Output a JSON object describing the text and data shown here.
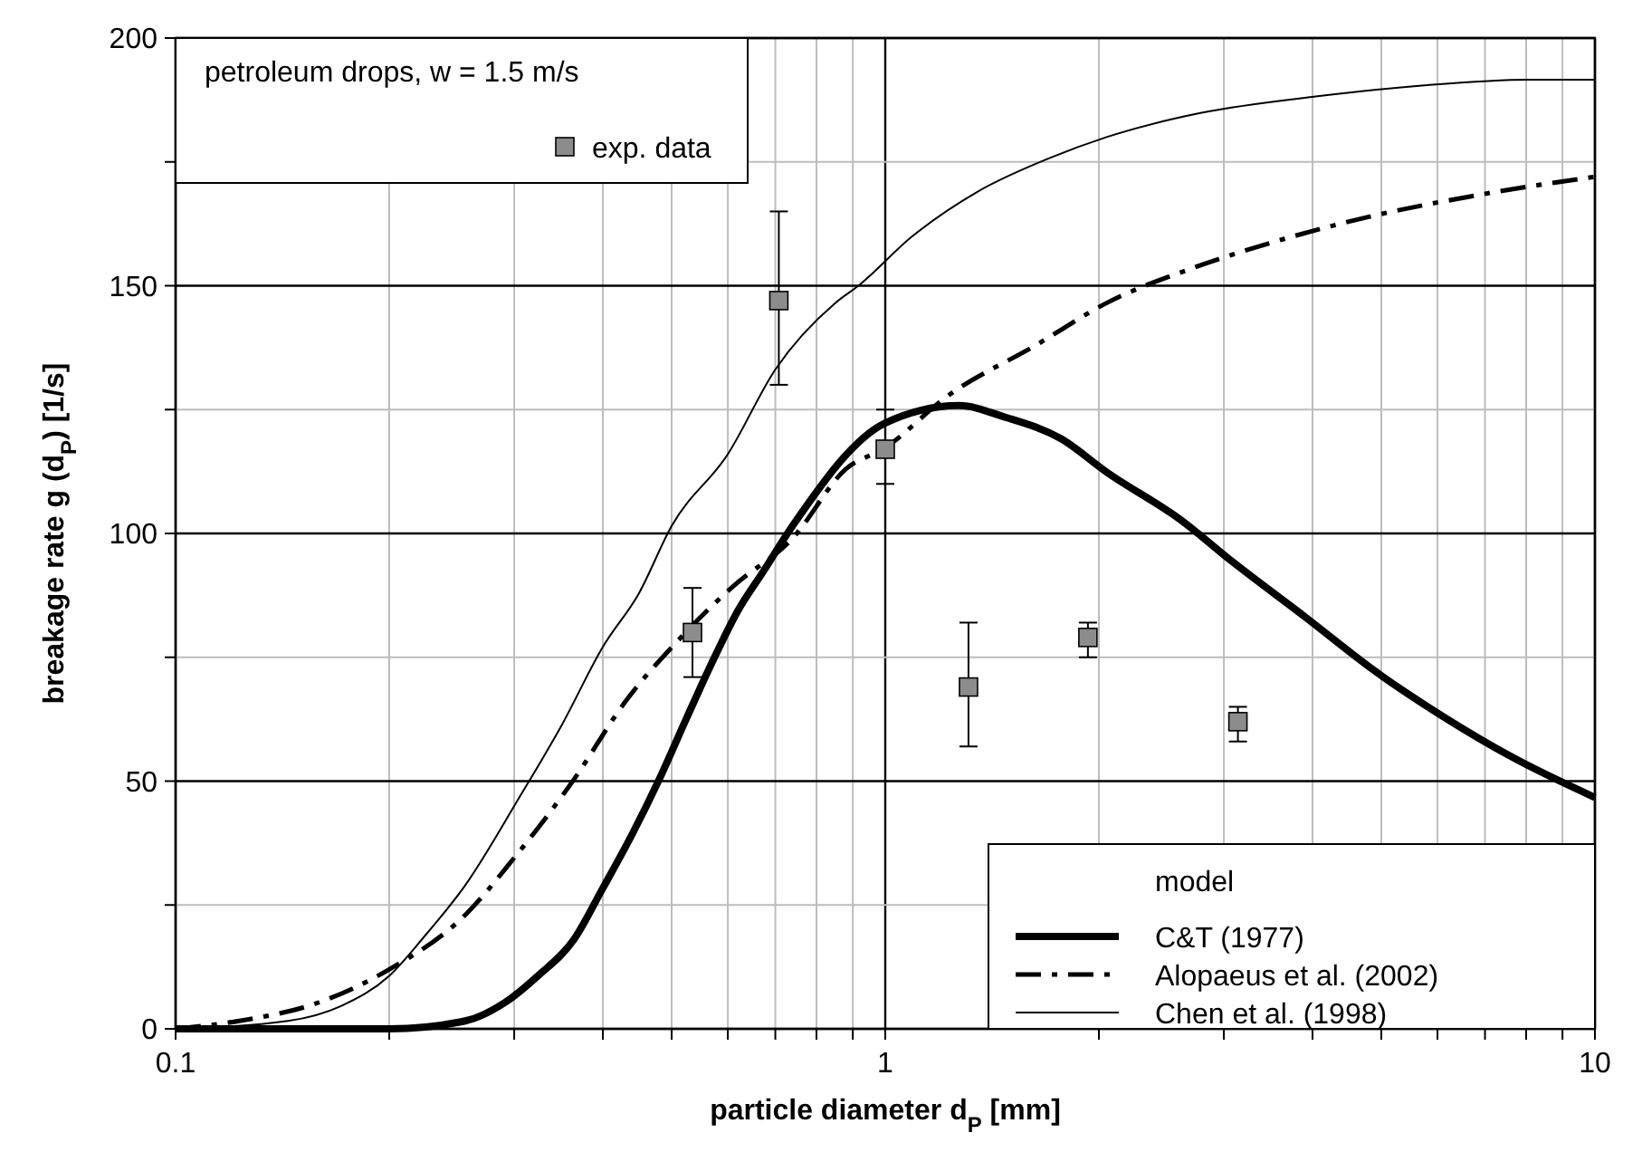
{
  "chart_data": {
    "type": "line",
    "xlabel": "particle diameter d$_{P}$ [mm]",
    "ylabel": "breakage rate g (d$_{P}$) [1/s]",
    "legend_title": "model",
    "annotations": [
      "petroleum drops, w = 1.5 m/s"
    ],
    "log": "x",
    "grid": true,
    "legend": "bottom right",
    "xlim": [
      0.1,
      10
    ],
    "ylim": [
      0,
      200
    ],
    "xticks": [
      0.1,
      {
        "value": 0.2,
        "label": null
      },
      {
        "value": 0.3,
        "label": null
      },
      {
        "value": 0.4,
        "label": null
      },
      {
        "value": 0.5,
        "label": null
      },
      {
        "value": 0.6,
        "label": null
      },
      {
        "value": 0.7,
        "label": null
      },
      {
        "value": 0.8,
        "label": null
      },
      {
        "value": 0.9,
        "label": null
      },
      1,
      {
        "value": 2,
        "label": null
      },
      {
        "value": 3,
        "label": null
      },
      {
        "value": 4,
        "label": null
      },
      {
        "value": 5,
        "label": null
      },
      {
        "value": 6,
        "label": null
      },
      {
        "value": 7,
        "label": null
      },
      {
        "value": 8,
        "label": null
      },
      {
        "value": 9,
        "label": null
      },
      10
    ],
    "yticks": [
      0,
      {
        "value": 25,
        "label": null
      },
      50,
      {
        "value": 75,
        "label": null
      },
      100,
      {
        "value": 125,
        "label": null
      },
      150,
      {
        "value": 175,
        "label": null
      },
      200
    ],
    "series": [
      {
        "name": "C&T (1977)",
        "color": "#000000",
        "line_style": "solid",
        "x": [
          0.1,
          0.15,
          0.2,
          0.256,
          0.291,
          0.324,
          0.364,
          0.4,
          0.44,
          0.48,
          0.524,
          0.576,
          0.62,
          0.673,
          0.74,
          1.0,
          1.27,
          1.48,
          1.77,
          2.05,
          2.61,
          3.09,
          3.9,
          4.9,
          6.1,
          7.7,
          10
        ],
        "values": [
          0,
          0,
          0,
          1.6,
          5.3,
          10.7,
          18,
          28.4,
          39.3,
          50.3,
          62.5,
          75.3,
          84.4,
          92.3,
          101.5,
          122.3,
          125.8,
          123.4,
          119.1,
          112.4,
          102.7,
          94.2,
          83.2,
          72.2,
          63.1,
          54.6,
          46.7
        ]
      },
      {
        "name": "Alopaeus et al. (2002)",
        "color": "#000000",
        "line_style": "dashed",
        "x": [
          0.1,
          0.123,
          0.159,
          0.2,
          0.256,
          0.3,
          0.364,
          0.43,
          0.51,
          0.61,
          0.74,
          0.88,
          1.0,
          1.22,
          1.63,
          2.05,
          2.74,
          3.5,
          4.7,
          6.9,
          10
        ],
        "values": [
          0,
          1.6,
          5.3,
          12,
          23,
          34.5,
          50.3,
          66,
          78.3,
          89.3,
          99,
          113,
          117.3,
          127.6,
          138,
          146.5,
          153.8,
          158.7,
          163.6,
          168.4,
          172
        ]
      },
      {
        "name": "Chen et al. (1998)",
        "color": "#000000",
        "line_style": "solid",
        "x": [
          0.1,
          0.144,
          0.171,
          0.2,
          0.224,
          0.256,
          0.305,
          0.35,
          0.4,
          0.45,
          0.5,
          0.6,
          0.7,
          0.85,
          0.92,
          1.09,
          1.35,
          1.7,
          2.05,
          2.79,
          4.04,
          5.7,
          8.1,
          10
        ],
        "values": [
          0,
          1.6,
          4.6,
          10.7,
          18.6,
          29,
          46.7,
          61.3,
          77.1,
          88,
          101.5,
          116,
          133.1,
          146.5,
          150.2,
          159.9,
          169,
          175.7,
          180,
          184.9,
          188.2,
          190.4,
          191.6,
          191.6
        ]
      },
      {
        "name": "exp. data",
        "type": "scatter",
        "color": "#8c8c8c",
        "marker": "square",
        "x": [
          0.535,
          0.708,
          1.0,
          1.31,
          1.93,
          3.14
        ],
        "values": [
          80,
          147,
          117,
          69,
          79,
          62
        ],
        "errors": [
          [
            71,
            89
          ],
          [
            130,
            165
          ],
          [
            110,
            125
          ],
          [
            57,
            82
          ],
          [
            75,
            82
          ],
          [
            58,
            65
          ]
        ]
      }
    ]
  }
}
